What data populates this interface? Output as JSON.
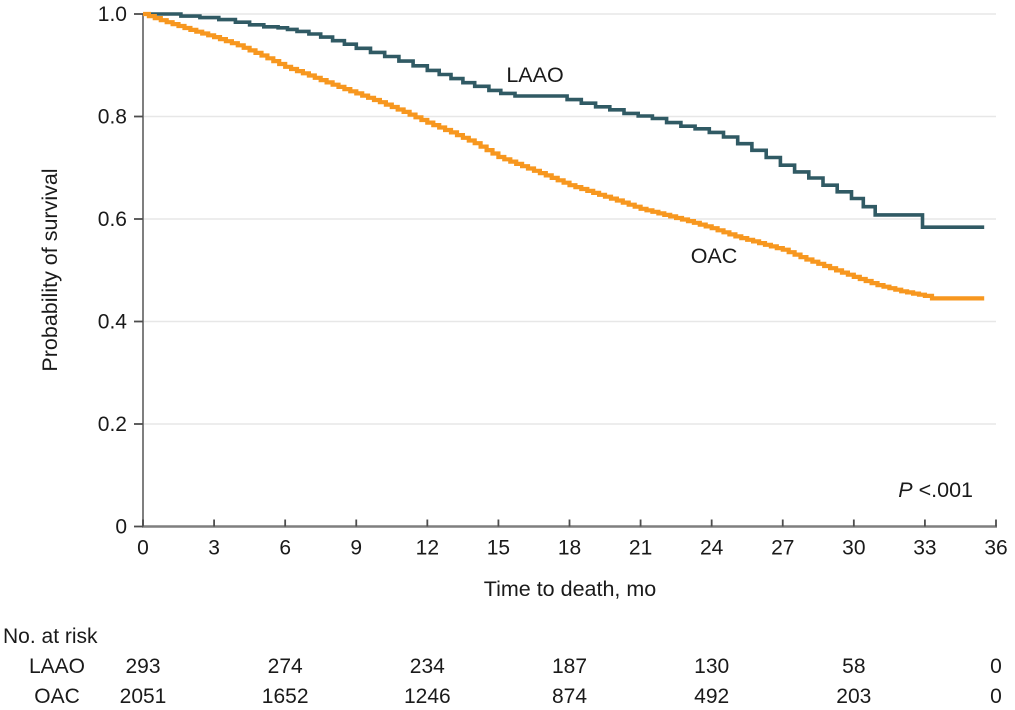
{
  "chart_data": {
    "type": "line",
    "subtype": "kaplan-meier-step-curves",
    "title": "",
    "xlabel": "Time to death, mo",
    "ylabel": "Probability of survival",
    "xlim": [
      0,
      36
    ],
    "ylim": [
      0,
      1.0
    ],
    "xticks": [
      0,
      3,
      6,
      9,
      12,
      15,
      18,
      21,
      24,
      27,
      30,
      33,
      36
    ],
    "yticks": [
      0,
      0.2,
      0.4,
      0.6,
      0.8,
      1.0
    ],
    "ytick_labels": [
      "0",
      "0.2",
      "0.4",
      "0.6",
      "0.8",
      "1.0"
    ],
    "grid": "horizontal-gridlines-on",
    "legend_position": "inline-curve-labels",
    "annotation_p_italic": "P",
    "annotation_p_rest": " <.001",
    "colors": {
      "laao_curve": "#305a64",
      "oac_curve": "#f7971f",
      "axis_line": "#7f7f7f",
      "tick_mark": "#4d4d4d",
      "gridline": "#e7e7e7",
      "text": "#1a1a1a"
    },
    "series": [
      {
        "name": "LAAO",
        "color": "#305a64",
        "substep_mo": 99,
        "points": [
          [
            0,
            1.0
          ],
          [
            0.9,
            1.0
          ],
          [
            1.6,
            0.996
          ],
          [
            2.4,
            0.993
          ],
          [
            3.2,
            0.989
          ],
          [
            3.9,
            0.984
          ],
          [
            4.5,
            0.979
          ],
          [
            5.1,
            0.975
          ],
          [
            5.7,
            0.973
          ],
          [
            6.1,
            0.97
          ],
          [
            6.5,
            0.966
          ],
          [
            7.0,
            0.961
          ],
          [
            7.5,
            0.955
          ],
          [
            8.0,
            0.948
          ],
          [
            8.5,
            0.941
          ],
          [
            9.0,
            0.933
          ],
          [
            9.6,
            0.925
          ],
          [
            10.2,
            0.917
          ],
          [
            10.8,
            0.908
          ],
          [
            11.4,
            0.899
          ],
          [
            12.0,
            0.89
          ],
          [
            12.5,
            0.882
          ],
          [
            13.0,
            0.874
          ],
          [
            13.5,
            0.866
          ],
          [
            14.0,
            0.859
          ],
          [
            14.6,
            0.851
          ],
          [
            15.1,
            0.845
          ],
          [
            15.7,
            0.84
          ],
          [
            17.3,
            0.84
          ],
          [
            17.9,
            0.833
          ],
          [
            18.5,
            0.826
          ],
          [
            19.1,
            0.819
          ],
          [
            19.7,
            0.813
          ],
          [
            20.3,
            0.806
          ],
          [
            20.9,
            0.801
          ],
          [
            21.5,
            0.796
          ],
          [
            22.1,
            0.788
          ],
          [
            22.7,
            0.781
          ],
          [
            23.3,
            0.776
          ],
          [
            23.9,
            0.769
          ],
          [
            24.5,
            0.76
          ],
          [
            25.1,
            0.747
          ],
          [
            25.7,
            0.734
          ],
          [
            26.3,
            0.72
          ],
          [
            26.9,
            0.705
          ],
          [
            27.5,
            0.692
          ],
          [
            28.1,
            0.68
          ],
          [
            28.7,
            0.666
          ],
          [
            29.3,
            0.653
          ],
          [
            29.9,
            0.64
          ],
          [
            30.4,
            0.624
          ],
          [
            30.9,
            0.608
          ],
          [
            32.4,
            0.608
          ],
          [
            32.9,
            0.584
          ],
          [
            35.5,
            0.584
          ]
        ]
      },
      {
        "name": "OAC",
        "color": "#f7971f",
        "substep_mo": 0.28,
        "points": [
          [
            0,
            1.0
          ],
          [
            1,
            0.984
          ],
          [
            2,
            0.969
          ],
          [
            3,
            0.955
          ],
          [
            4,
            0.939
          ],
          [
            5,
            0.919
          ],
          [
            6,
            0.897
          ],
          [
            7,
            0.88
          ],
          [
            8,
            0.862
          ],
          [
            9,
            0.845
          ],
          [
            10,
            0.828
          ],
          [
            11,
            0.809
          ],
          [
            12,
            0.788
          ],
          [
            13,
            0.769
          ],
          [
            14,
            0.748
          ],
          [
            15,
            0.721
          ],
          [
            16,
            0.703
          ],
          [
            17,
            0.685
          ],
          [
            18,
            0.666
          ],
          [
            19,
            0.651
          ],
          [
            20,
            0.636
          ],
          [
            21,
            0.62
          ],
          [
            22,
            0.608
          ],
          [
            23,
            0.596
          ],
          [
            24,
            0.582
          ],
          [
            25,
            0.566
          ],
          [
            26,
            0.553
          ],
          [
            27,
            0.54
          ],
          [
            28,
            0.521
          ],
          [
            29,
            0.504
          ],
          [
            30,
            0.487
          ],
          [
            31,
            0.471
          ],
          [
            32,
            0.459
          ],
          [
            33,
            0.45
          ],
          [
            33.3,
            0.445
          ],
          [
            35.5,
            0.445
          ]
        ]
      }
    ],
    "risk_table": {
      "header": "No. at risk",
      "time_points": [
        0,
        6,
        12,
        18,
        24,
        30,
        36
      ],
      "rows": [
        {
          "label": "LAAO",
          "values": [
            "293",
            "274",
            "234",
            "187",
            "130",
            "58",
            "0"
          ]
        },
        {
          "label": "OAC",
          "values": [
            "2051",
            "1652",
            "1246",
            "874",
            "492",
            "203",
            "0"
          ]
        }
      ]
    }
  }
}
